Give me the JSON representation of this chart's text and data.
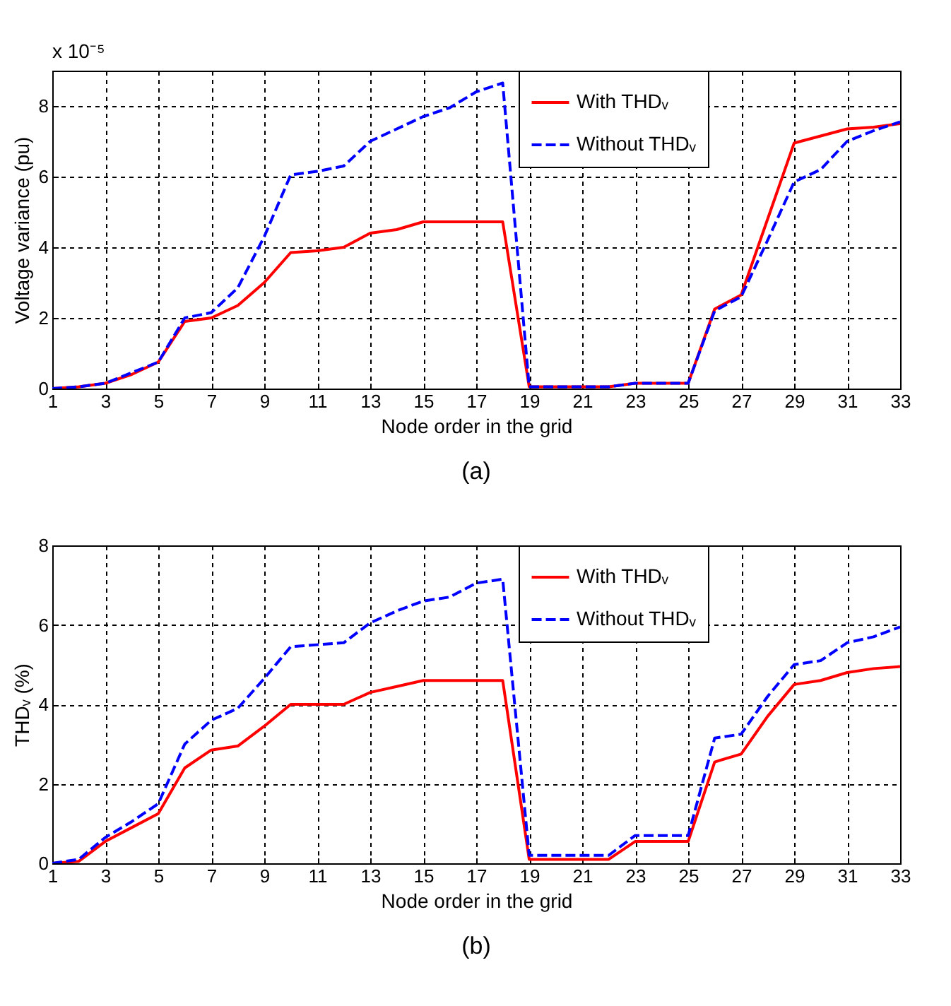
{
  "chart_data": [
    {
      "type": "line",
      "xlabel": "Node order in the grid",
      "ylabel": "Voltage variance (pu)",
      "annotations": [
        "x 10⁻⁵",
        "(a)"
      ],
      "xlim": [
        1,
        33
      ],
      "ylim": [
        0,
        9
      ],
      "xticks": [
        1,
        3,
        5,
        7,
        9,
        11,
        13,
        15,
        17,
        19,
        21,
        23,
        25,
        27,
        29,
        31,
        33
      ],
      "yticks": [
        0,
        2,
        4,
        6,
        8
      ],
      "grid": true,
      "legend": "top right",
      "marker": "none",
      "x": [
        1,
        2,
        3,
        4,
        5,
        6,
        7,
        8,
        9,
        10,
        11,
        12,
        13,
        14,
        15,
        16,
        17,
        18,
        19,
        20,
        21,
        22,
        23,
        24,
        25,
        26,
        27,
        28,
        29,
        30,
        31,
        32,
        33
      ],
      "series": [
        {
          "name": "With THDᵥ",
          "color": "#ff0000",
          "line_style": "solid",
          "values": [
            0,
            0.05,
            0.15,
            0.4,
            0.75,
            1.9,
            2.0,
            2.35,
            3.0,
            3.85,
            3.9,
            4.0,
            4.4,
            4.5,
            4.72,
            4.72,
            4.72,
            4.72,
            0.05,
            0.05,
            0.05,
            0.05,
            0.15,
            0.15,
            0.15,
            2.25,
            2.65,
            4.8,
            6.95,
            7.15,
            7.35,
            7.4,
            7.5
          ]
        },
        {
          "name": "Without THDᵥ",
          "color": "#0000ff",
          "line_style": "dashed",
          "values": [
            0,
            0.05,
            0.15,
            0.45,
            0.75,
            2.0,
            2.15,
            2.85,
            4.3,
            6.05,
            6.15,
            6.3,
            7.0,
            7.35,
            7.7,
            7.95,
            8.4,
            8.65,
            0.05,
            0.05,
            0.05,
            0.05,
            0.15,
            0.15,
            0.15,
            2.2,
            2.6,
            4.2,
            5.85,
            6.2,
            7.0,
            7.3,
            7.55
          ]
        }
      ]
    },
    {
      "type": "line",
      "xlabel": "Node order in the grid",
      "ylabel": "THDᵥ (%)",
      "annotations": [
        "(b)"
      ],
      "xlim": [
        1,
        33
      ],
      "ylim": [
        0,
        8
      ],
      "xticks": [
        1,
        3,
        5,
        7,
        9,
        11,
        13,
        15,
        17,
        19,
        21,
        23,
        25,
        27,
        29,
        31,
        33
      ],
      "yticks": [
        0,
        2,
        4,
        6,
        8
      ],
      "grid": true,
      "legend": "top right",
      "marker": "none",
      "x": [
        1,
        2,
        3,
        4,
        5,
        6,
        7,
        8,
        9,
        10,
        11,
        12,
        13,
        14,
        15,
        16,
        17,
        18,
        19,
        20,
        21,
        22,
        23,
        24,
        25,
        26,
        27,
        28,
        29,
        30,
        31,
        32,
        33
      ],
      "series": [
        {
          "name": "With THDᵥ",
          "color": "#ff0000",
          "line_style": "solid",
          "values": [
            0,
            0.05,
            0.55,
            0.9,
            1.25,
            2.4,
            2.85,
            2.95,
            3.45,
            4.0,
            4.0,
            4.0,
            4.3,
            4.45,
            4.6,
            4.6,
            4.6,
            4.6,
            0.1,
            0.1,
            0.1,
            0.1,
            0.55,
            0.55,
            0.55,
            2.55,
            2.75,
            3.7,
            4.5,
            4.6,
            4.8,
            4.9,
            4.95
          ]
        },
        {
          "name": "Without THDᵥ",
          "color": "#0000ff",
          "line_style": "dashed",
          "values": [
            0,
            0.1,
            0.65,
            1.05,
            1.5,
            3.0,
            3.6,
            3.9,
            4.65,
            5.45,
            5.5,
            5.55,
            6.05,
            6.35,
            6.6,
            6.7,
            7.05,
            7.15,
            0.2,
            0.2,
            0.2,
            0.2,
            0.7,
            0.7,
            0.7,
            3.15,
            3.25,
            4.2,
            5.0,
            5.1,
            5.55,
            5.7,
            5.95
          ]
        }
      ]
    }
  ]
}
